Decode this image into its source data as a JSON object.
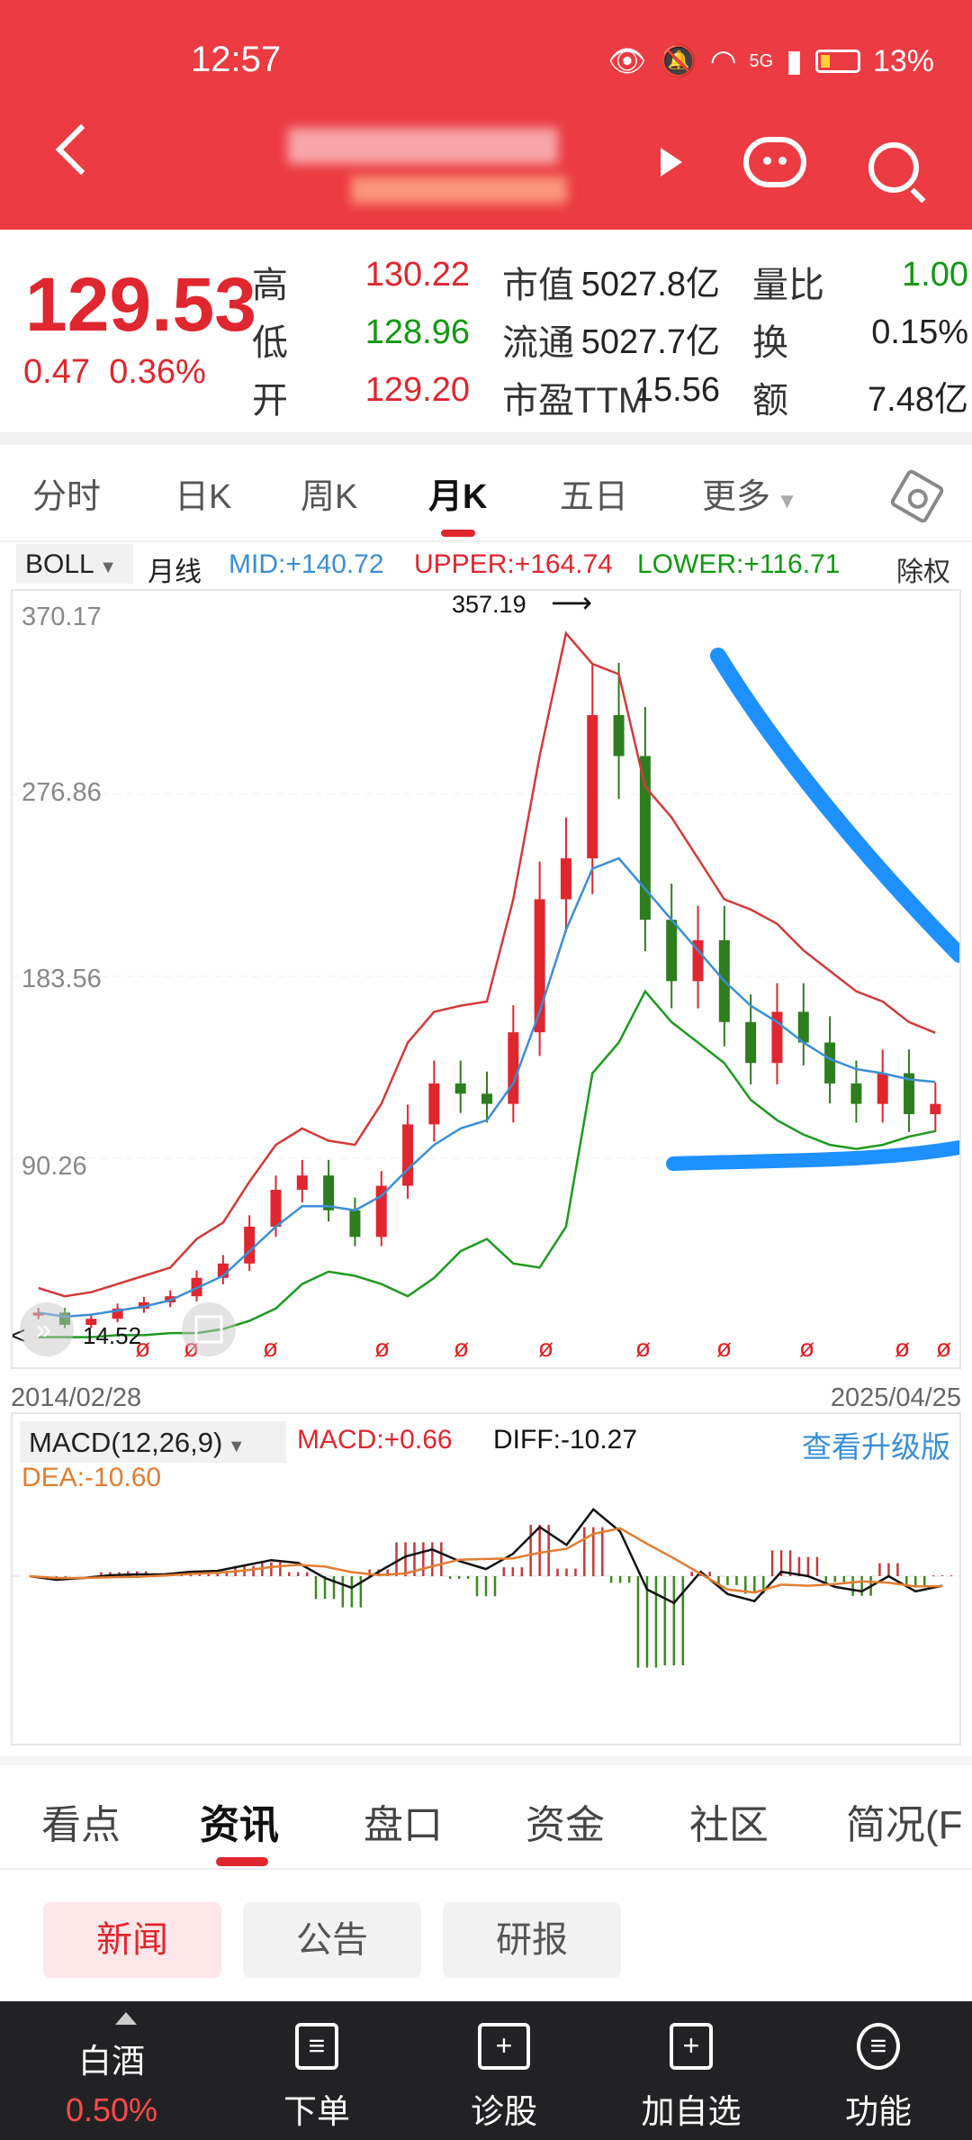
{
  "status_bar": {
    "time": "12:57",
    "network": "5G",
    "battery": "13%"
  },
  "quote": {
    "price": "129.53",
    "change": "0.47",
    "change_pct": "0.36%",
    "high_label": "高",
    "high": "130.22",
    "low_label": "低",
    "low": "128.96",
    "open_label": "开",
    "open": "129.20",
    "mktcap_label": "市值",
    "mktcap": "5027.8亿",
    "float_label": "流通",
    "float": "5027.7亿",
    "pe_label": "市盈TTM",
    "pe": "15.56",
    "vol_ratio_label": "量比",
    "vol_ratio": "1.00",
    "turnover_label": "换",
    "turnover": "0.15%",
    "amount_label": "额",
    "amount": "7.48亿"
  },
  "period_tabs": [
    "分时",
    "日K",
    "周K",
    "月K",
    "五日",
    "更多"
  ],
  "indicator": {
    "name": "BOLL",
    "period": "月线",
    "mid": "MID:+140.72",
    "upper": "UPPER:+164.74",
    "lower": "LOWER:+116.71",
    "adjust": "除权"
  },
  "kchart": {
    "y_ticks": [
      "370.17",
      "276.86",
      "183.56",
      "90.26"
    ],
    "max_label": "357.19",
    "min_label": "14.52",
    "date_start": "2014/02/28",
    "date_end": "2025/04/25"
  },
  "macd": {
    "name": "MACD(12,26,9)",
    "macd": "MACD:+0.66",
    "diff": "DIFF:-10.27",
    "dea": "DEA:-10.60",
    "upgrade": "查看升级版"
  },
  "section_tabs": [
    "看点",
    "资讯",
    "盘口",
    "资金",
    "社区",
    "简况(F"
  ],
  "news_chips": [
    "新闻",
    "公告",
    "研报"
  ],
  "bottom_nav": {
    "sector_label": "白酒",
    "sector_pct": "0.50%",
    "items": [
      "下单",
      "诊股",
      "加自选",
      "功能"
    ]
  },
  "colors": {
    "up": "#e0262e",
    "down": "#119911",
    "header": "#ec3b42",
    "mid_line": "#3b8fd6",
    "annotation": "#1e90ff"
  },
  "chart_data": {
    "type": "candlestick",
    "title": "月K",
    "y_range": [
      14.52,
      370.17
    ],
    "x_range": [
      "2014/02/28",
      "2025/04/25"
    ],
    "series": [
      {
        "name": "close",
        "values": [
          28,
          22,
          25,
          30,
          33,
          36,
          45,
          52,
          70,
          88,
          95,
          78,
          65,
          90,
          120,
          140,
          135,
          130,
          165,
          230,
          250,
          320,
          300,
          220,
          190,
          210,
          170,
          150,
          175,
          160,
          140,
          130,
          145,
          125,
          130
        ]
      },
      {
        "name": "UPPER",
        "values": [
          40,
          36,
          38,
          42,
          46,
          50,
          64,
          72,
          92,
          110,
          118,
          112,
          110,
          130,
          160,
          175,
          178,
          180,
          230,
          300,
          360,
          345,
          340,
          285,
          270,
          250,
          230,
          225,
          218,
          205,
          195,
          185,
          180,
          170,
          164.74
        ]
      },
      {
        "name": "MID",
        "values": [
          28,
          26,
          27,
          29,
          31,
          34,
          40,
          46,
          58,
          70,
          80,
          80,
          78,
          85,
          98,
          110,
          118,
          122,
          140,
          175,
          215,
          245,
          250,
          235,
          220,
          205,
          190,
          178,
          170,
          160,
          152,
          147,
          145,
          142,
          140.72
        ]
      },
      {
        "name": "LOWER",
        "values": [
          16,
          16,
          16,
          17,
          17,
          18,
          18,
          20,
          24,
          30,
          42,
          48,
          46,
          42,
          36,
          45,
          58,
          64,
          52,
          50,
          70,
          145,
          160,
          185,
          170,
          160,
          150,
          132,
          122,
          115,
          110,
          108,
          110,
          114,
          116.71
        ]
      }
    ]
  }
}
